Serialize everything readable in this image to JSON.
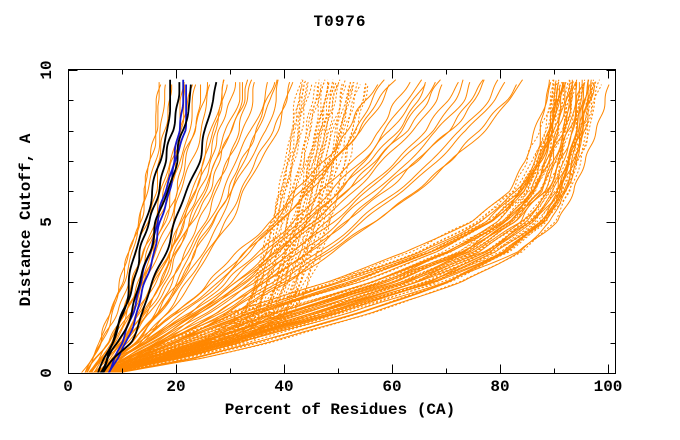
{
  "chart_data": {
    "type": "line",
    "title": "T0976",
    "xlabel": "Percent of Residues (CA)",
    "ylabel": "Distance Cutoff, A",
    "xlim": [
      0,
      100
    ],
    "ylim": [
      0,
      10
    ],
    "grid": false,
    "legend": "none",
    "x_ticks": {
      "labels": [
        "0",
        "20",
        "40",
        "60",
        "80",
        "100"
      ],
      "values": [
        0,
        20,
        40,
        60,
        80,
        100
      ],
      "minor": [
        10,
        30,
        50,
        70,
        90
      ]
    },
    "y_ticks": {
      "labels": [
        "0",
        "5",
        "10"
      ],
      "values": [
        0,
        5,
        10
      ],
      "minor": [
        1,
        2,
        3,
        4,
        6,
        7,
        8,
        9
      ]
    },
    "colors": {
      "model": "#FF8700",
      "highlight_black": "#000000",
      "highlight_blue": "#1616CC",
      "frame": "#000000",
      "background": "#FFFFFF"
    },
    "curve_y_anchors": [
      0,
      0.5,
      1,
      2,
      3,
      4,
      5,
      6,
      7,
      8,
      9,
      9.7
    ],
    "model_families": [
      {
        "name": "left-fan",
        "count": 26,
        "width": 1,
        "dash_mode": "none",
        "jitter": 0.9,
        "lo": [
          3.0,
          4.5,
          6.0,
          8.0,
          9.8,
          11.3,
          12.8,
          14.0,
          15.0,
          15.8,
          16.3,
          16.5
        ],
        "hi": [
          7.0,
          10.0,
          13.5,
          18.5,
          22.5,
          26.0,
          29.5,
          32.5,
          35.5,
          38.5,
          41.0,
          42.0
        ]
      },
      {
        "name": "mid-bundle",
        "count": 38,
        "width": 1,
        "dash_mode": "all",
        "jitter": 0.7,
        "lo": [
          4.0,
          13.0,
          24.0,
          32.5,
          34.5,
          36.0,
          37.5,
          39.0,
          40.2,
          41.3,
          42.3,
          43.0
        ],
        "hi": [
          8.0,
          21.0,
          33.0,
          42.0,
          44.5,
          46.5,
          48.5,
          50.0,
          51.5,
          53.0,
          54.5,
          55.5
        ]
      },
      {
        "name": "diagonal-spread",
        "count": 20,
        "width": 1,
        "dash_mode": "none",
        "jitter": 1.1,
        "lo": [
          4.0,
          8.0,
          12.0,
          19.0,
          25.0,
          30.5,
          36.0,
          41.0,
          46.0,
          50.5,
          54.0,
          56.5
        ],
        "hi": [
          7.0,
          13.5,
          20.0,
          31.5,
          41.5,
          50.0,
          58.0,
          65.5,
          72.5,
          78.5,
          83.5,
          86.0
        ]
      },
      {
        "name": "right-elbow",
        "count": 38,
        "width": 1,
        "dash_mode": "half",
        "jitter": 1.0,
        "lo": [
          5.0,
          11.0,
          17.0,
          30.0,
          48.0,
          63.0,
          75.0,
          82.0,
          85.5,
          87.5,
          89.0,
          90.0
        ],
        "hi": [
          8.0,
          20.0,
          31.0,
          52.0,
          70.0,
          83.0,
          90.0,
          93.5,
          95.5,
          97.0,
          98.2,
          99.0
        ]
      },
      {
        "name": "right-band",
        "count": 16,
        "width": 1,
        "dash_mode": "half",
        "jitter": 0.8,
        "lo": [
          6.0,
          16.0,
          24.0,
          40.0,
          57.0,
          70.0,
          79.0,
          84.0,
          86.5,
          88.0,
          89.0,
          89.5
        ],
        "hi": [
          9.0,
          26.0,
          38.0,
          58.0,
          74.0,
          84.5,
          90.5,
          93.0,
          94.5,
          95.5,
          96.5,
          97.0
        ]
      }
    ],
    "highlight_curves": [
      {
        "name": "blue-1",
        "color": "#1616CC",
        "width": 1.8,
        "jitter": 0.5,
        "x": [
          7.4,
          8.9,
          10.4,
          12.1,
          13.6,
          15.1,
          16.6,
          18.1,
          19.6,
          20.9,
          21.4,
          21.6
        ]
      },
      {
        "name": "blue-2",
        "color": "#1616CC",
        "width": 1.8,
        "jitter": 0.5,
        "x": [
          7.7,
          9.4,
          11.0,
          12.9,
          14.4,
          15.9,
          17.4,
          18.9,
          20.4,
          21.8,
          22.3,
          22.5
        ]
      },
      {
        "name": "black-1",
        "color": "#000000",
        "width": 1.8,
        "jitter": 0.8,
        "x": [
          5.4,
          6.6,
          8.0,
          9.8,
          11.2,
          12.6,
          14.0,
          15.4,
          16.8,
          18.0,
          18.8,
          19.0
        ]
      },
      {
        "name": "black-2",
        "color": "#000000",
        "width": 1.8,
        "jitter": 0.8,
        "x": [
          5.8,
          7.2,
          8.8,
          10.8,
          12.4,
          14.0,
          15.6,
          17.0,
          18.5,
          19.8,
          20.6,
          20.9
        ]
      },
      {
        "name": "black-3",
        "color": "#000000",
        "width": 1.8,
        "jitter": 0.8,
        "x": [
          6.2,
          7.8,
          9.6,
          11.8,
          13.8,
          15.4,
          17.0,
          18.8,
          20.6,
          22.0,
          22.8,
          23.1
        ]
      },
      {
        "name": "black-4",
        "color": "#000000",
        "width": 1.8,
        "jitter": 0.8,
        "x": [
          6.8,
          9.0,
          11.5,
          14.2,
          16.3,
          18.3,
          20.3,
          22.3,
          24.3,
          25.9,
          26.9,
          27.3
        ]
      }
    ]
  }
}
